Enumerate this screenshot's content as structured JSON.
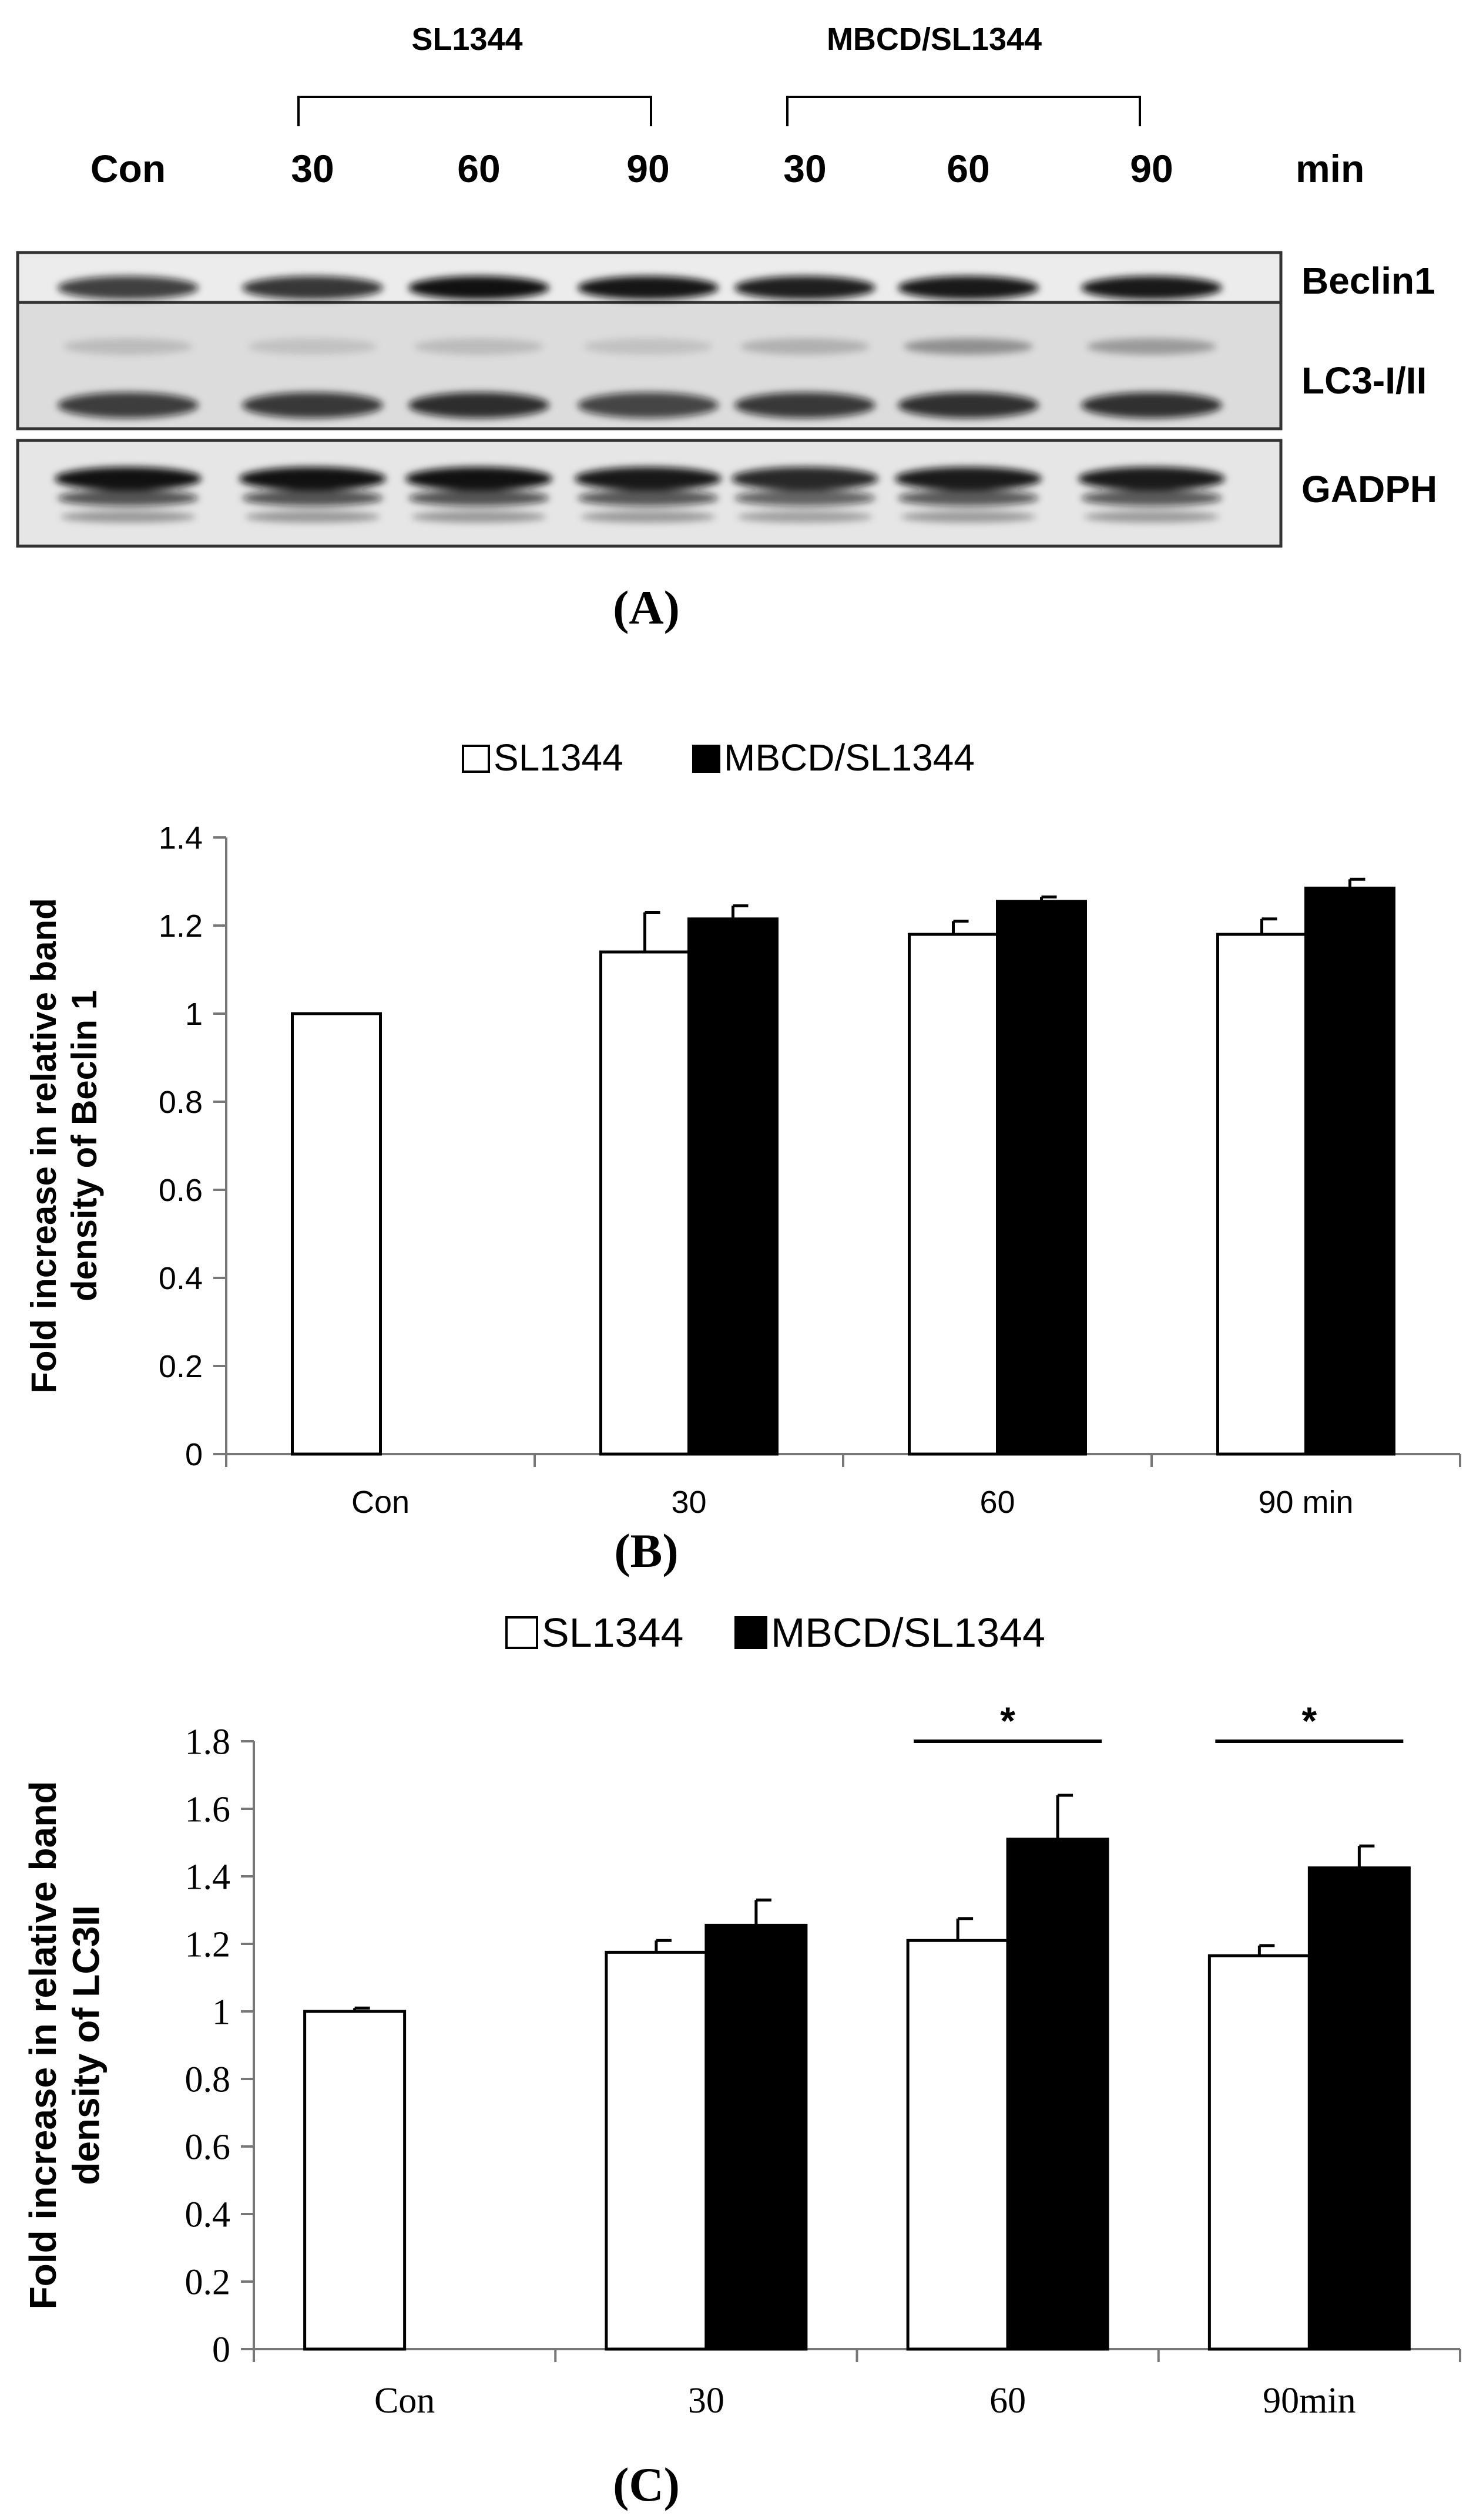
{
  "blot": {
    "group_labels": [
      "SL1344",
      "MBCD/SL1344"
    ],
    "lane_labels": [
      "Con",
      "30",
      "60",
      "90",
      "30",
      "60",
      "90"
    ],
    "unit_label": "min",
    "rows": [
      {
        "label": "Beclin1",
        "kind": "single",
        "intensities": [
          0.78,
          0.82,
          0.98,
          0.96,
          0.92,
          0.95,
          0.95
        ]
      },
      {
        "label": "LC3-I/II",
        "kind": "double",
        "intensities": [
          0.78,
          0.8,
          0.85,
          0.74,
          0.8,
          0.84,
          0.84
        ],
        "upper_intensities": [
          0.15,
          0.12,
          0.15,
          0.12,
          0.2,
          0.35,
          0.3
        ]
      },
      {
        "label": "GADPH",
        "kind": "triple",
        "intensities": [
          0.98,
          0.98,
          0.98,
          0.95,
          0.88,
          0.94,
          0.94
        ]
      }
    ],
    "panel_label": "(A)"
  },
  "chart_data": [
    {
      "type": "bar",
      "panel_label": "(B)",
      "ylabel": [
        "Fold increase in relative band",
        "density of Beclin 1"
      ],
      "categories": [
        "Con",
        "30",
        "60",
        "90 min"
      ],
      "series": [
        {
          "name": "SL1344",
          "color": "#ffffff",
          "values": [
            1.0,
            1.14,
            1.18,
            1.18
          ],
          "errors": [
            0,
            0.09,
            0.03,
            0.035
          ]
        },
        {
          "name": "MBCD/SL1344",
          "color": "#000000",
          "values": [
            null,
            1.215,
            1.255,
            1.285
          ],
          "errors": [
            0,
            0.03,
            0.01,
            0.02
          ]
        }
      ],
      "ylim": [
        0,
        1.4
      ],
      "yticks": [
        "0",
        "0.2",
        "0.4",
        "0.6",
        "0.8",
        "1",
        "1.2",
        "1.4"
      ],
      "tick_step": 0.2,
      "significance": []
    },
    {
      "type": "bar",
      "panel_label": "(C)",
      "ylabel": [
        "Fold increase  in relative  band",
        "density of LC3II"
      ],
      "categories": [
        "Con",
        "30",
        "60",
        "90min"
      ],
      "series": [
        {
          "name": "SL1344",
          "color": "#ffffff",
          "values": [
            1.0,
            1.175,
            1.21,
            1.165
          ],
          "errors": [
            0.01,
            0.035,
            0.065,
            0.03
          ]
        },
        {
          "name": "MBCD/SL1344",
          "color": "#000000",
          "values": [
            null,
            1.255,
            1.51,
            1.425
          ],
          "errors": [
            0,
            0.075,
            0.13,
            0.065
          ]
        }
      ],
      "ylim": [
        0,
        1.8
      ],
      "yticks": [
        "0",
        "0.2",
        "0.4",
        "0.6",
        "0.8",
        "1",
        "1.2",
        "1.4",
        "1.6",
        "1.8"
      ],
      "tick_step": 0.2,
      "significance": [
        {
          "category": "60",
          "label": "*"
        },
        {
          "category": "90min",
          "label": "*"
        }
      ]
    }
  ]
}
